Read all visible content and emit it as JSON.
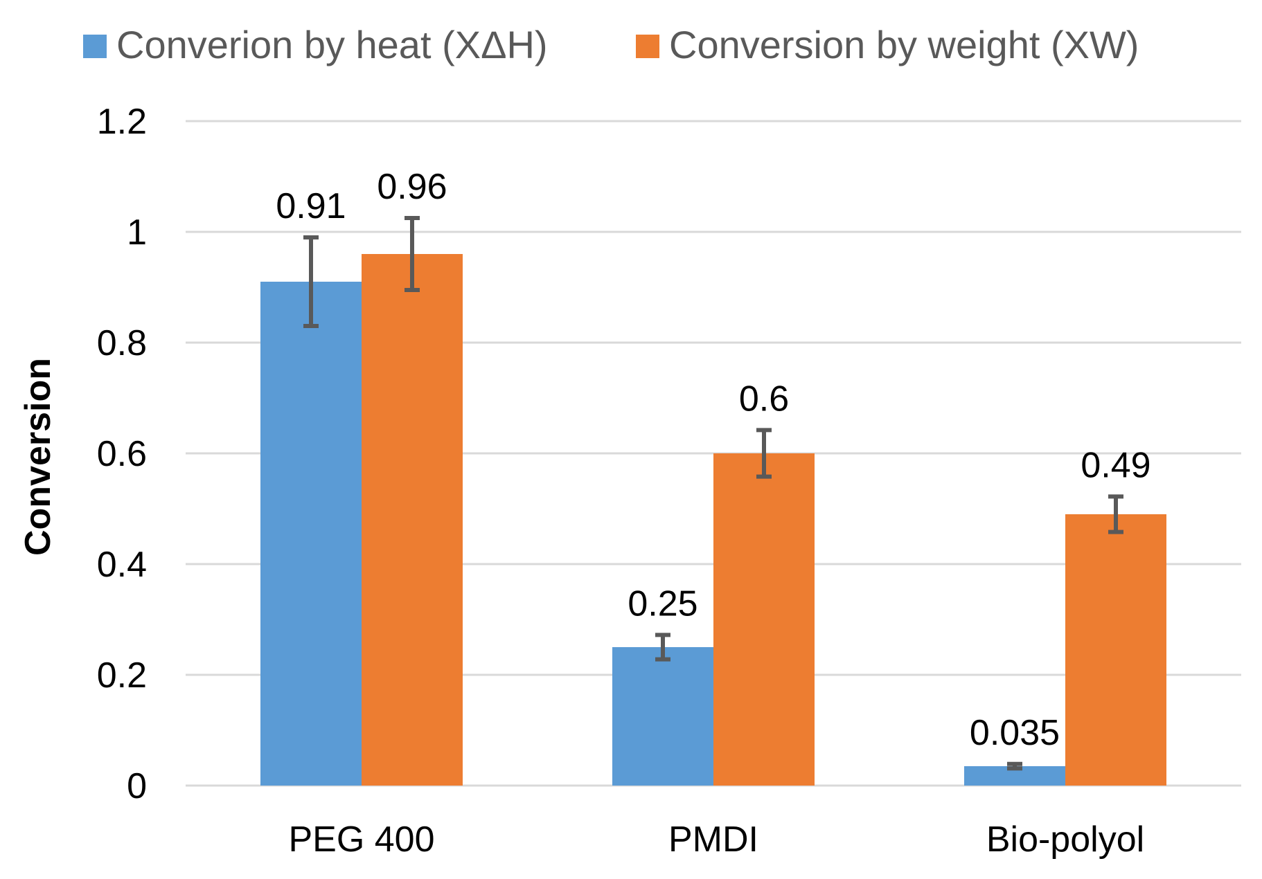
{
  "chart_data": {
    "type": "bar",
    "title": "",
    "xlabel": "",
    "ylabel": "Conversion",
    "ylim": [
      0,
      1.2
    ],
    "yticks": [
      0,
      0.2,
      0.4,
      0.6,
      0.8,
      1,
      1.2
    ],
    "ytick_labels": [
      "0",
      "0.2",
      "0.4",
      "0.6",
      "0.8",
      "1",
      "1.2"
    ],
    "grid": true,
    "legend_position": "top",
    "categories": [
      "PEG 400",
      "PMDI",
      "Bio-polyol"
    ],
    "series": [
      {
        "name": "Converion by heat (XΔH)",
        "color": "#5b9bd5",
        "values": [
          0.91,
          0.25,
          0.035
        ],
        "labels": [
          "0.91",
          "0.25",
          "0.035"
        ],
        "errors": [
          0.08,
          0.022,
          0.004
        ]
      },
      {
        "name": "Conversion by weight (XW)",
        "color": "#ed7d31",
        "values": [
          0.96,
          0.6,
          0.49
        ],
        "labels": [
          "0.96",
          "0.6",
          "0.49"
        ],
        "errors": [
          0.065,
          0.042,
          0.032
        ]
      }
    ],
    "error_bar_color": "#595959"
  }
}
